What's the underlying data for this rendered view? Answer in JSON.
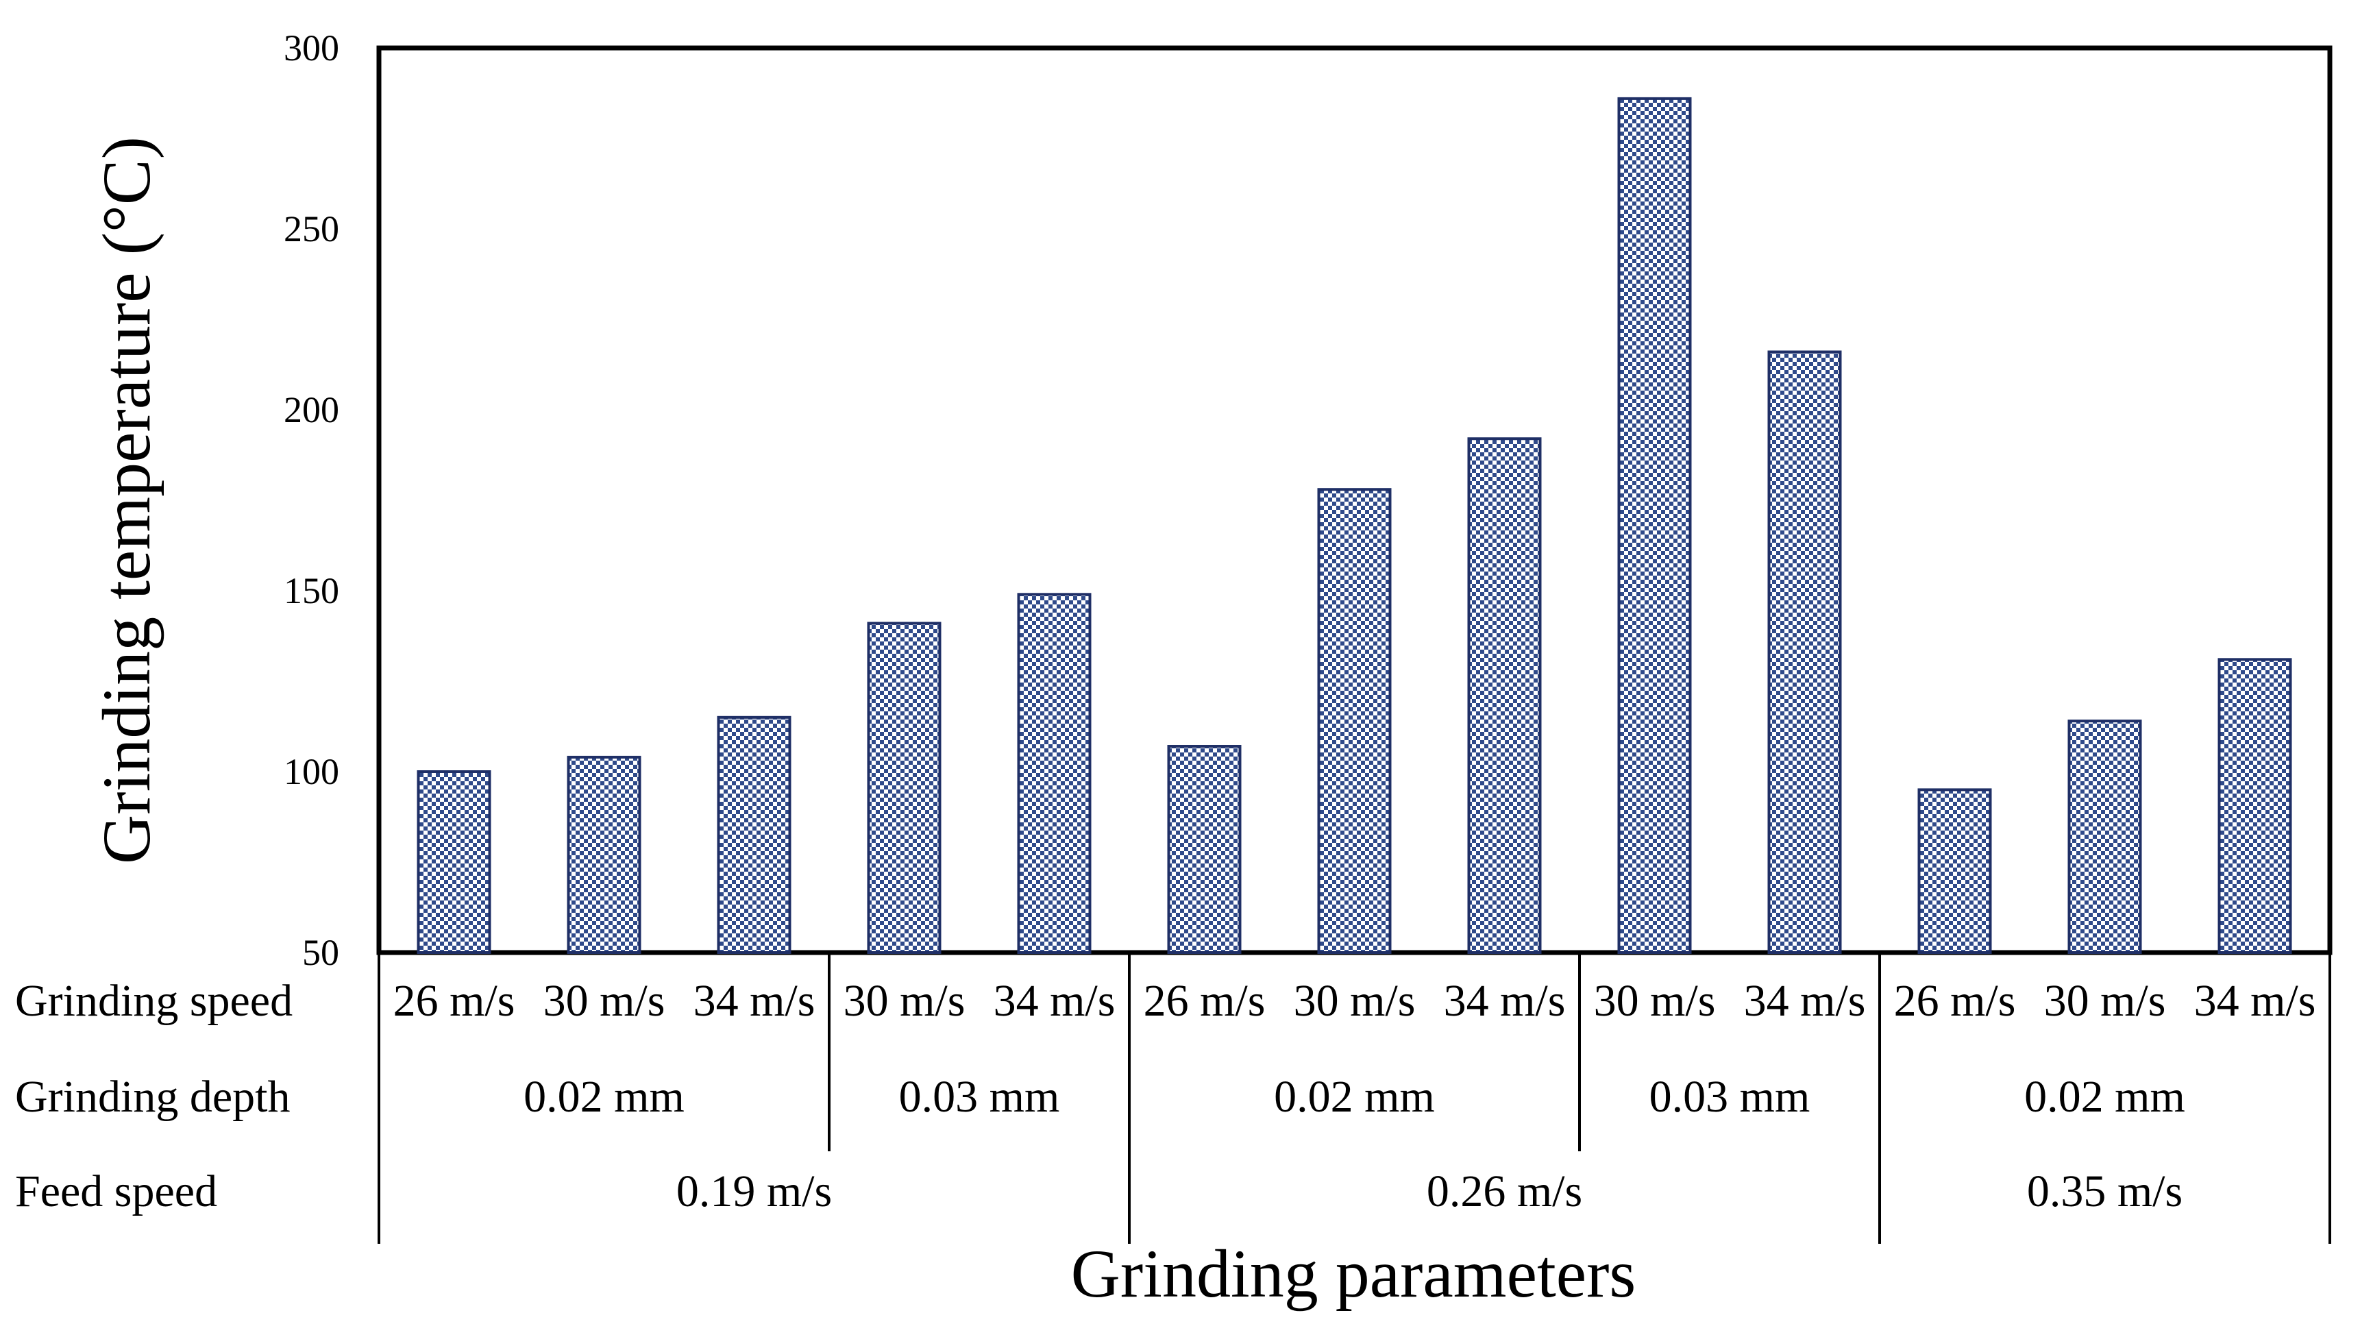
{
  "chart_data": {
    "type": "bar",
    "ylabel": "Grinding temperature (°C)",
    "xlabel": "Grinding parameters",
    "ylim": [
      50,
      300
    ],
    "yticks": [
      50,
      100,
      150,
      200,
      250,
      300
    ],
    "grid": false,
    "legend": "none",
    "values": [
      100,
      104,
      115,
      141,
      149,
      107,
      178,
      192,
      286,
      216,
      95,
      114,
      131
    ],
    "bar_color": "#2f4a8a",
    "row_labels": [
      "Grinding speed",
      "Grinding depth",
      "Feed speed"
    ],
    "grinding_speed": [
      "26 m/s",
      "30 m/s",
      "34 m/s",
      "30 m/s",
      "34 m/s",
      "26 m/s",
      "30 m/s",
      "34 m/s",
      "30 m/s",
      "34 m/s",
      "26 m/s",
      "30 m/s",
      "34 m/s"
    ],
    "grinding_depth": [
      {
        "label": "0.02 mm",
        "span": 3
      },
      {
        "label": "0.03 mm",
        "span": 2
      },
      {
        "label": "0.02 mm",
        "span": 3
      },
      {
        "label": "0.03 mm",
        "span": 2
      },
      {
        "label": "0.02 mm",
        "span": 3
      }
    ],
    "feed_speed": [
      {
        "label": "0.19 m/s",
        "span": 5
      },
      {
        "label": "0.26 m/s",
        "span": 5
      },
      {
        "label": "0.35 m/s",
        "span": 3
      }
    ]
  }
}
